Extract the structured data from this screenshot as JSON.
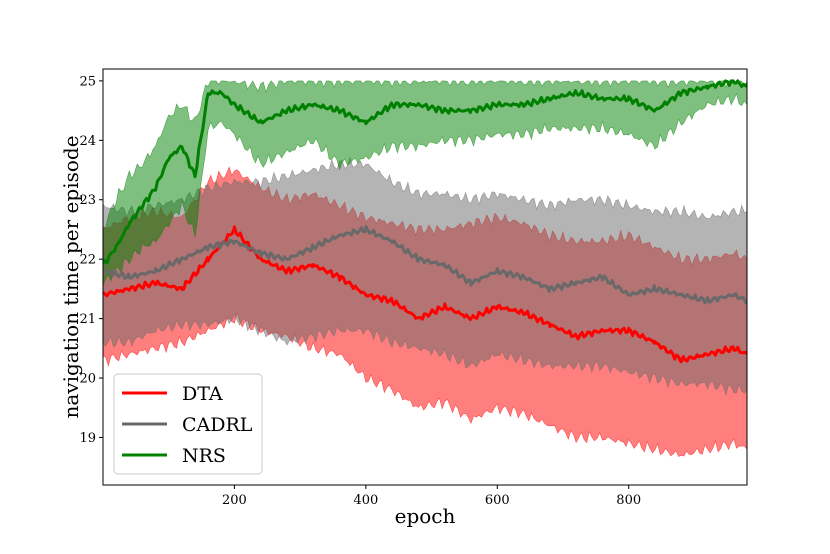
{
  "chart_data": {
    "type": "line",
    "xlabel": "epoch",
    "ylabel": "navigation time per episode",
    "xlim": [
      0,
      980
    ],
    "ylim": [
      18.2,
      25.2
    ],
    "xticks": [
      200,
      400,
      600,
      800
    ],
    "yticks": [
      19,
      20,
      21,
      22,
      23,
      24,
      25
    ],
    "legend_position": "lower-left",
    "grid": false,
    "series": [
      {
        "name": "DTA",
        "color": "#ff0000",
        "x": [
          0,
          40,
          80,
          120,
          160,
          200,
          240,
          280,
          320,
          360,
          400,
          440,
          480,
          520,
          560,
          600,
          640,
          680,
          720,
          760,
          800,
          840,
          880,
          920,
          960,
          980
        ],
        "mean": [
          21.4,
          21.5,
          21.6,
          21.5,
          22.0,
          22.5,
          22.0,
          21.8,
          21.9,
          21.7,
          21.4,
          21.3,
          21.0,
          21.2,
          21.0,
          21.2,
          21.1,
          20.9,
          20.7,
          20.8,
          20.8,
          20.6,
          20.3,
          20.4,
          20.5,
          20.4
        ],
        "lower": [
          20.3,
          20.4,
          20.5,
          20.6,
          20.8,
          21.0,
          20.8,
          20.7,
          20.5,
          20.4,
          20.0,
          19.8,
          19.5,
          19.6,
          19.3,
          19.5,
          19.4,
          19.2,
          19.0,
          19.0,
          18.9,
          18.8,
          18.7,
          18.8,
          18.9,
          18.8
        ],
        "upper": [
          22.5,
          22.7,
          22.8,
          22.7,
          23.3,
          23.5,
          23.2,
          23.0,
          23.1,
          22.9,
          22.7,
          22.6,
          22.5,
          22.5,
          22.6,
          22.7,
          22.6,
          22.4,
          22.3,
          22.3,
          22.4,
          22.2,
          22.0,
          22.0,
          22.1,
          22.0
        ]
      },
      {
        "name": "CADRL",
        "color": "#696969",
        "x": [
          0,
          40,
          80,
          120,
          160,
          200,
          240,
          280,
          320,
          360,
          400,
          440,
          480,
          520,
          560,
          600,
          640,
          680,
          720,
          760,
          800,
          840,
          880,
          920,
          960,
          980
        ],
        "mean": [
          21.8,
          21.7,
          21.8,
          22.0,
          22.2,
          22.3,
          22.1,
          22.0,
          22.2,
          22.4,
          22.5,
          22.3,
          22.0,
          21.9,
          21.6,
          21.8,
          21.7,
          21.5,
          21.6,
          21.7,
          21.4,
          21.5,
          21.4,
          21.3,
          21.4,
          21.3
        ],
        "lower": [
          20.6,
          20.6,
          20.8,
          20.9,
          20.9,
          21.0,
          20.8,
          20.6,
          20.7,
          20.8,
          20.8,
          20.6,
          20.5,
          20.4,
          20.2,
          20.4,
          20.3,
          20.2,
          20.2,
          20.2,
          20.1,
          20.0,
          19.9,
          19.9,
          19.8,
          19.8
        ],
        "upper": [
          22.9,
          22.8,
          22.9,
          23.0,
          23.2,
          23.3,
          23.3,
          23.4,
          23.5,
          23.6,
          23.6,
          23.3,
          23.1,
          23.1,
          23.0,
          23.1,
          23.0,
          22.9,
          23.0,
          23.0,
          22.9,
          22.8,
          22.8,
          22.7,
          22.8,
          22.8
        ]
      },
      {
        "name": "NRS",
        "color": "#008000",
        "x": [
          0,
          20,
          40,
          60,
          80,
          100,
          120,
          140,
          160,
          180,
          200,
          240,
          280,
          320,
          360,
          400,
          440,
          480,
          520,
          560,
          600,
          640,
          680,
          720,
          760,
          800,
          840,
          880,
          920,
          960,
          980
        ],
        "mean": [
          21.9,
          22.2,
          22.6,
          22.9,
          23.2,
          23.7,
          23.9,
          23.4,
          24.8,
          24.8,
          24.6,
          24.3,
          24.5,
          24.6,
          24.5,
          24.3,
          24.6,
          24.6,
          24.5,
          24.5,
          24.6,
          24.6,
          24.7,
          24.8,
          24.7,
          24.7,
          24.5,
          24.8,
          24.9,
          25.0,
          24.9
        ],
        "lower": [
          21.6,
          21.8,
          22.0,
          22.2,
          22.3,
          22.6,
          22.9,
          22.4,
          24.2,
          24.3,
          24.1,
          23.6,
          23.8,
          24.0,
          23.6,
          23.7,
          23.9,
          23.9,
          24.0,
          24.0,
          24.1,
          24.1,
          24.2,
          24.2,
          24.2,
          24.1,
          23.9,
          24.3,
          24.6,
          24.7,
          24.6
        ],
        "upper": [
          22.5,
          23.0,
          23.4,
          23.6,
          23.9,
          24.4,
          24.6,
          24.3,
          25.0,
          25.0,
          25.0,
          24.9,
          25.0,
          25.0,
          25.0,
          25.0,
          25.0,
          25.0,
          25.0,
          25.0,
          25.0,
          25.0,
          25.0,
          25.0,
          25.0,
          25.0,
          25.0,
          25.0,
          25.0,
          25.0,
          25.0
        ]
      }
    ]
  }
}
